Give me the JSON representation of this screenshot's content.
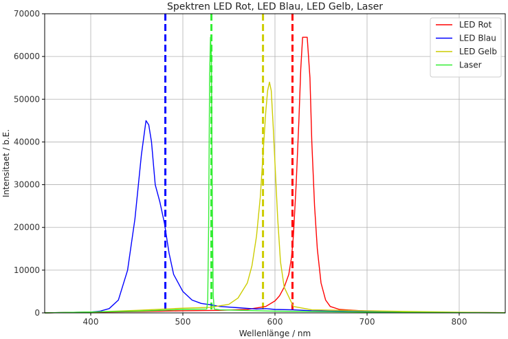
{
  "chart_data": {
    "type": "line",
    "title": "Spektren LED Rot, LED Blau, LED Gelb, Laser",
    "xlabel": "Wellenlänge / nm",
    "ylabel": "Intensitaet / b.E.",
    "xlim": [
      350,
      850
    ],
    "ylim": [
      0,
      70000
    ],
    "xticks": [
      400,
      500,
      600,
      700,
      800
    ],
    "yticks": [
      0,
      10000,
      20000,
      30000,
      40000,
      50000,
      60000,
      70000
    ],
    "grid": true,
    "legend_position": "top-right",
    "series": [
      {
        "name": "LED Rot",
        "color": "#ff0000",
        "x": [
          350,
          450,
          500,
          540,
          570,
          590,
          600,
          605,
          610,
          615,
          618,
          620,
          623,
          626,
          628,
          630,
          635,
          638,
          640,
          643,
          646,
          650,
          655,
          660,
          670,
          700,
          750,
          800,
          850
        ],
        "y": [
          0,
          300,
          500,
          600,
          800,
          1500,
          2800,
          4000,
          6000,
          9000,
          13000,
          18000,
          30000,
          45000,
          57000,
          64500,
          64500,
          55000,
          40000,
          25000,
          15000,
          7000,
          3000,
          1500,
          800,
          400,
          200,
          100,
          50
        ]
      },
      {
        "name": "LED Blau",
        "color": "#0000ff",
        "x": [
          350,
          400,
          410,
          420,
          430,
          440,
          448,
          455,
          460,
          463,
          466,
          470,
          475,
          480,
          485,
          490,
          500,
          510,
          520,
          530,
          540,
          560,
          580,
          590,
          600,
          620,
          640,
          660,
          700,
          750,
          800,
          850
        ],
        "y": [
          0,
          200,
          400,
          1000,
          3000,
          10000,
          22000,
          37000,
          45000,
          44000,
          40000,
          30000,
          26000,
          21000,
          14000,
          9000,
          5000,
          3000,
          2200,
          1900,
          1500,
          1200,
          900,
          1000,
          800,
          700,
          500,
          400,
          300,
          200,
          100,
          50
        ]
      },
      {
        "name": "LED Gelb",
        "color": "#cccc00",
        "x": [
          350,
          400,
          450,
          500,
          530,
          550,
          560,
          570,
          575,
          580,
          584,
          587,
          590,
          592,
          594,
          596,
          598,
          600,
          603,
          606,
          610,
          620,
          640,
          700,
          750,
          800,
          850
        ],
        "y": [
          0,
          200,
          600,
          1100,
          1300,
          2000,
          3500,
          7000,
          11000,
          18000,
          27000,
          37000,
          47000,
          52000,
          54000,
          52000,
          44000,
          35000,
          22000,
          12000,
          6000,
          1500,
          700,
          500,
          300,
          150,
          50
        ]
      },
      {
        "name": "Laser",
        "color": "#33ee33",
        "x": [
          350,
          450,
          500,
          526,
          527,
          528,
          529,
          530,
          531,
          532,
          533,
          534,
          540,
          600,
          700,
          850
        ],
        "y": [
          0,
          400,
          800,
          900,
          3000,
          20000,
          55000,
          64500,
          60000,
          25000,
          4000,
          900,
          700,
          400,
          200,
          0
        ]
      }
    ],
    "reference_lines": [
      {
        "x": 481,
        "color": "#0000ff",
        "style": "dashed"
      },
      {
        "x": 531,
        "color": "#33ee33",
        "style": "dashed"
      },
      {
        "x": 587,
        "color": "#cccc00",
        "style": "dashed"
      },
      {
        "x": 619,
        "color": "#ff0000",
        "style": "dashed"
      }
    ]
  }
}
